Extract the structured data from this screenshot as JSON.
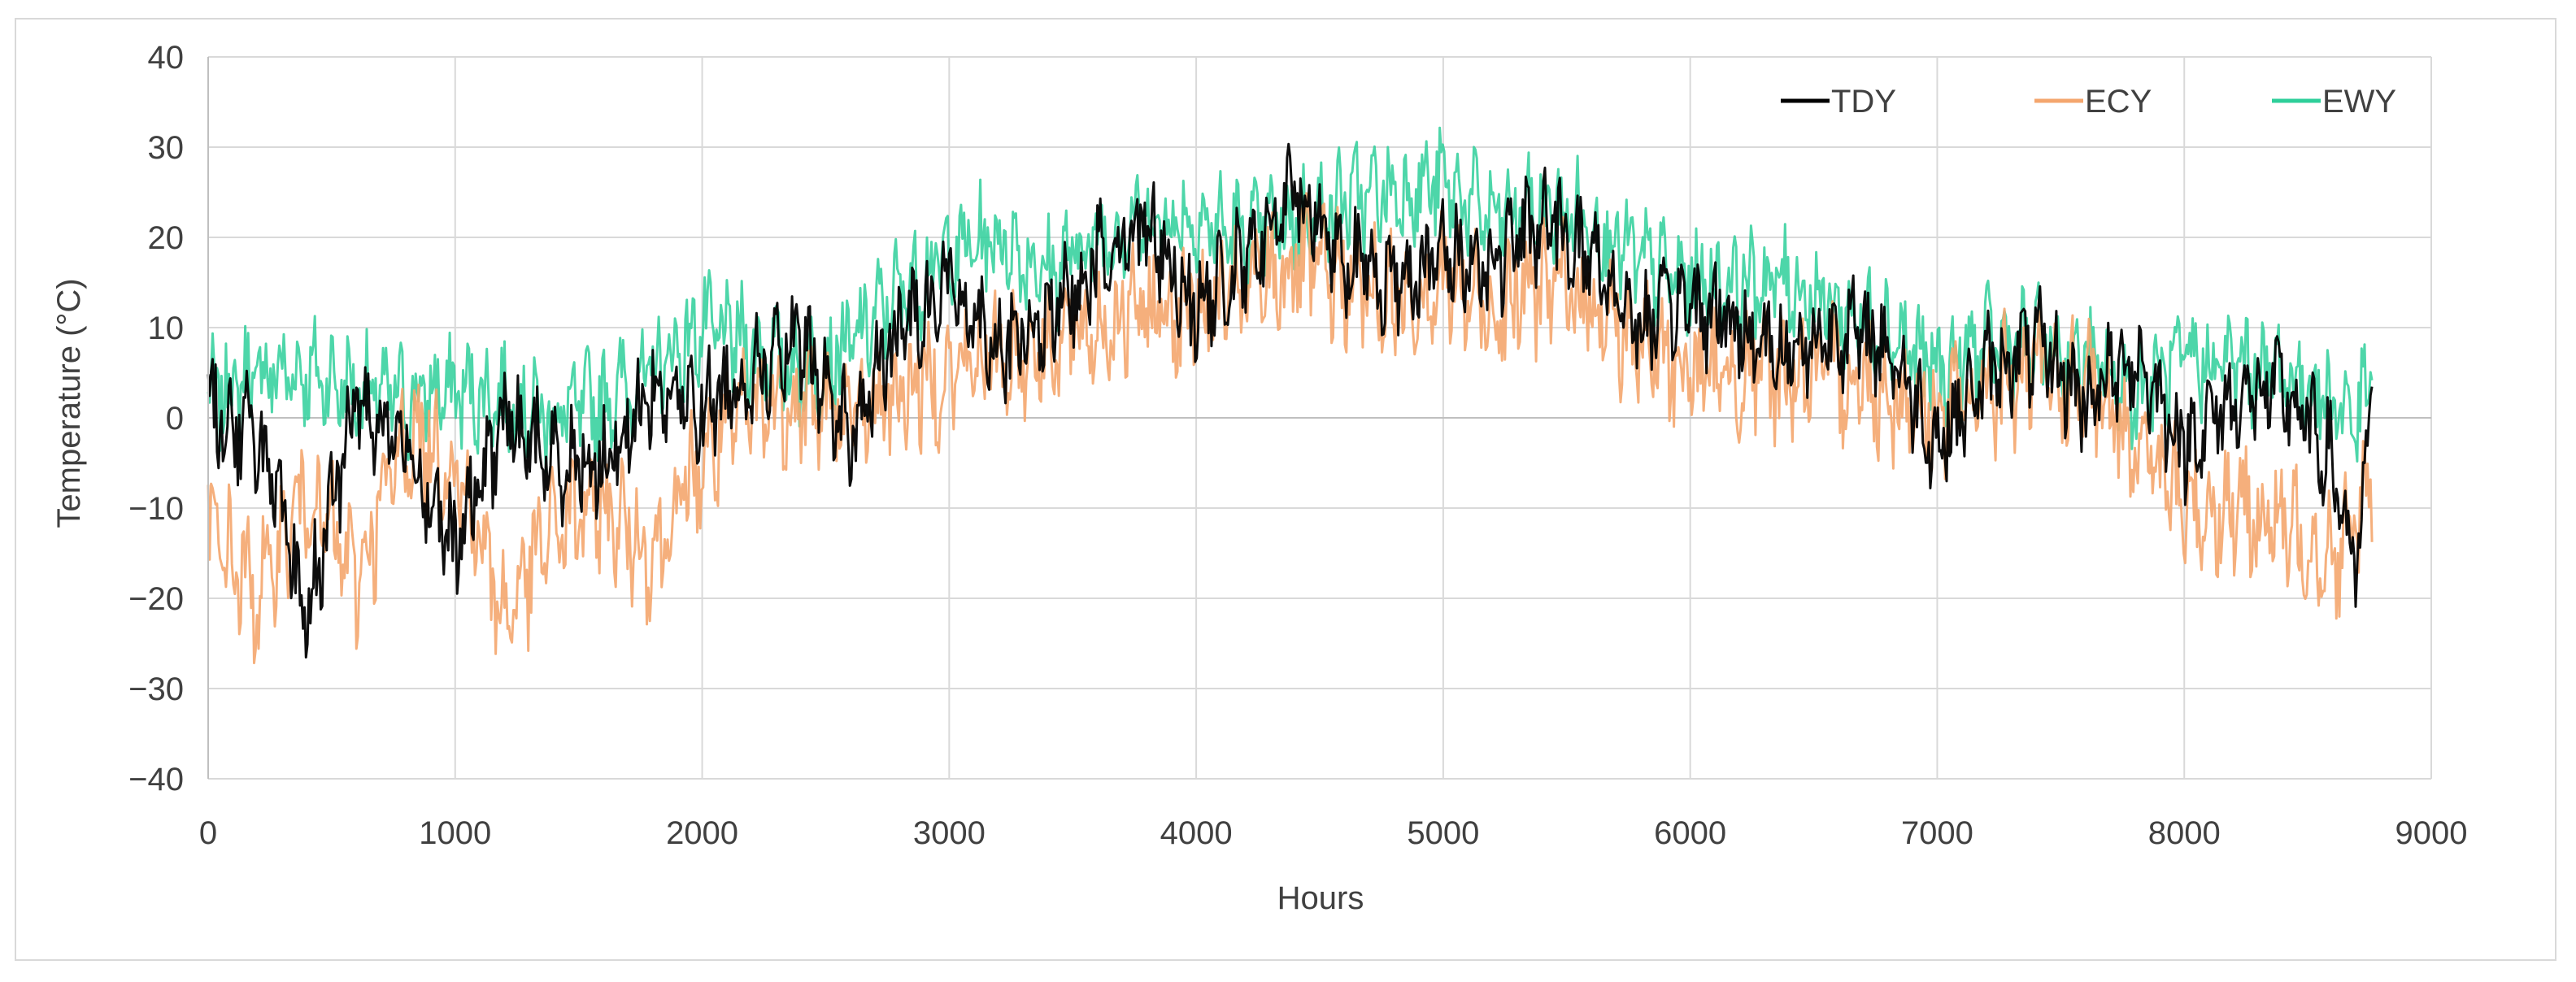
{
  "chart_data": {
    "type": "line",
    "title": "",
    "xlabel": "Hours",
    "ylabel": "Temperature (°C)",
    "xlim": [
      0,
      9000
    ],
    "ylim": [
      -40,
      40
    ],
    "x_ticks": [
      0,
      1000,
      2000,
      3000,
      4000,
      5000,
      6000,
      7000,
      8000,
      9000
    ],
    "y_ticks": [
      40,
      30,
      20,
      10,
      0,
      -10,
      -20,
      -30,
      -40
    ],
    "x_tick_labels": [
      "0",
      "1000",
      "2000",
      "3000",
      "4000",
      "5000",
      "6000",
      "7000",
      "8000",
      "9000"
    ],
    "y_tick_labels": [
      "40",
      "30",
      "20",
      "10",
      "0",
      "−10",
      "−20",
      "−30",
      "−40"
    ],
    "grid": true,
    "legend_position": "top-right",
    "x": [
      0,
      200,
      400,
      600,
      800,
      1000,
      1200,
      1400,
      1600,
      1800,
      2000,
      2200,
      2400,
      2600,
      2800,
      3000,
      3200,
      3400,
      3600,
      3800,
      4000,
      4200,
      4400,
      4600,
      4800,
      5000,
      5200,
      5400,
      5600,
      5800,
      6000,
      6200,
      6400,
      6600,
      6800,
      7000,
      7200,
      7400,
      7600,
      7800,
      8000,
      8200,
      8400,
      8600,
      8700,
      8760
    ],
    "series": [
      {
        "name": "TDY",
        "color": "#000000",
        "values": [
          1,
          -2,
          -22,
          2,
          -3,
          -15,
          0,
          -5,
          -5,
          3,
          1,
          5,
          8,
          -2,
          10,
          15,
          8,
          10,
          18,
          22,
          12,
          17,
          25,
          18,
          15,
          18,
          17,
          22,
          18,
          10,
          13,
          10,
          7,
          10,
          8,
          -3,
          5,
          8,
          2,
          7,
          -3,
          2,
          3,
          -5,
          -18,
          3
        ]
      },
      {
        "name": "ECY",
        "color": "#f4a66e",
        "values": [
          -12,
          -20,
          -8,
          -18,
          -2,
          -5,
          -22,
          -12,
          -10,
          -15,
          -5,
          1,
          2,
          0,
          3,
          5,
          7,
          8,
          10,
          12,
          12,
          14,
          17,
          15,
          13,
          15,
          12,
          15,
          13,
          8,
          5,
          5,
          5,
          5,
          3,
          0,
          3,
          5,
          3,
          -2,
          -10,
          -10,
          -12,
          -15,
          -12,
          -5
        ]
      },
      {
        "name": "EWY",
        "color": "#2ecf9a",
        "values": [
          2,
          5,
          5,
          3,
          2,
          3,
          2,
          0,
          2,
          5,
          10,
          8,
          5,
          8,
          14,
          18,
          20,
          16,
          20,
          22,
          22,
          20,
          22,
          24,
          25,
          26,
          22,
          23,
          22,
          17,
          15,
          15,
          15,
          12,
          10,
          5,
          8,
          8,
          6,
          3,
          6,
          6,
          5,
          2,
          0,
          4
        ]
      }
    ]
  }
}
